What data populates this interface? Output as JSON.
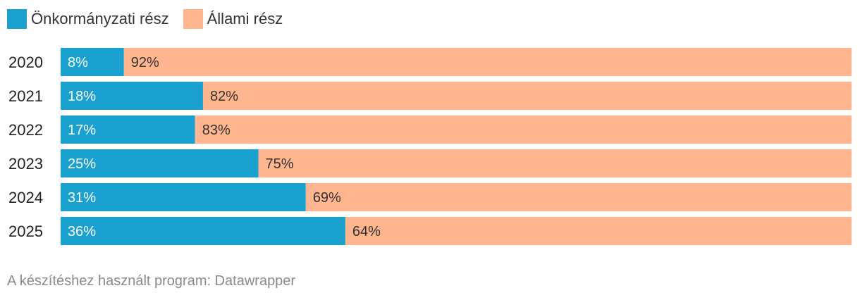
{
  "chart_data": {
    "type": "bar",
    "orientation": "horizontal",
    "stacked": true,
    "categories": [
      "2020",
      "2021",
      "2022",
      "2023",
      "2024",
      "2025"
    ],
    "series": [
      {
        "name": "Önkormányzati rész",
        "color": "#1aa1d0",
        "values": [
          8,
          18,
          17,
          25,
          31,
          36
        ],
        "labels": [
          "8%",
          "18%",
          "17%",
          "25%",
          "31%",
          "36%"
        ]
      },
      {
        "name": "Állami rész",
        "color": "#ffb58f",
        "values": [
          92,
          82,
          83,
          75,
          69,
          64
        ],
        "labels": [
          "92%",
          "82%",
          "83%",
          "75%",
          "69%",
          "64%"
        ]
      }
    ],
    "xlim": [
      0,
      100
    ],
    "grid": false,
    "legend_position": "top-left"
  },
  "footer": {
    "text": "A készítéshez használt program: Datawrapper"
  }
}
